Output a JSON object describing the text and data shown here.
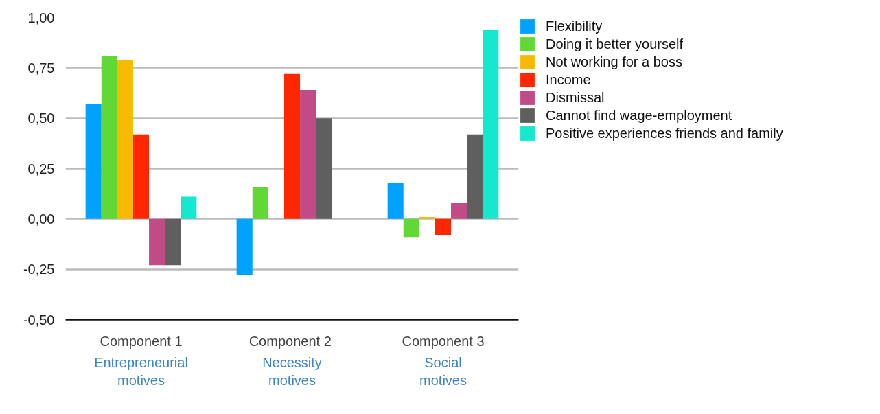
{
  "chart_data": {
    "type": "bar",
    "categories": [
      "Component 1",
      "Component  2",
      "Component 3"
    ],
    "series": [
      {
        "name": "Flexibility",
        "color": "#00a2ff",
        "values": [
          0.57,
          -0.28,
          0.18
        ]
      },
      {
        "name": "Doing it better yourself",
        "color": "#61d836",
        "values": [
          0.81,
          0.16,
          -0.09
        ]
      },
      {
        "name": "Not working for a boss",
        "color": "#f8ba00",
        "values": [
          0.79,
          null,
          0.01
        ]
      },
      {
        "name": "Income",
        "color": "#ff2600",
        "values": [
          0.42,
          0.72,
          -0.08
        ]
      },
      {
        "name": "Dismissal",
        "color": "#c04b86",
        "values": [
          -0.23,
          0.64,
          0.08
        ]
      },
      {
        "name": "Cannot find wage-employment",
        "color": "#5f5f5f",
        "values": [
          -0.23,
          0.5,
          0.42
        ]
      },
      {
        "name": "Positive experiences friends and family",
        "color": "#16e7cf",
        "values": [
          0.11,
          null,
          0.94
        ]
      }
    ],
    "ylim": [
      -0.5,
      1.0
    ],
    "yticks": [
      {
        "value": -0.5,
        "label": "-0,50"
      },
      {
        "value": -0.25,
        "label": "-0,25"
      },
      {
        "value": 0,
        "label": "0,00"
      },
      {
        "value": 0.25,
        "label": "0,25"
      },
      {
        "value": 0.5,
        "label": "0,50"
      },
      {
        "value": 0.75,
        "label": "0,75"
      },
      {
        "value": 1.0,
        "label": "1,00"
      }
    ],
    "grid": "y",
    "legend": "top right",
    "annotations": [
      "Entrepreneurial\nmotives",
      "Necessity\nmotives",
      "Social\nmotives"
    ]
  }
}
